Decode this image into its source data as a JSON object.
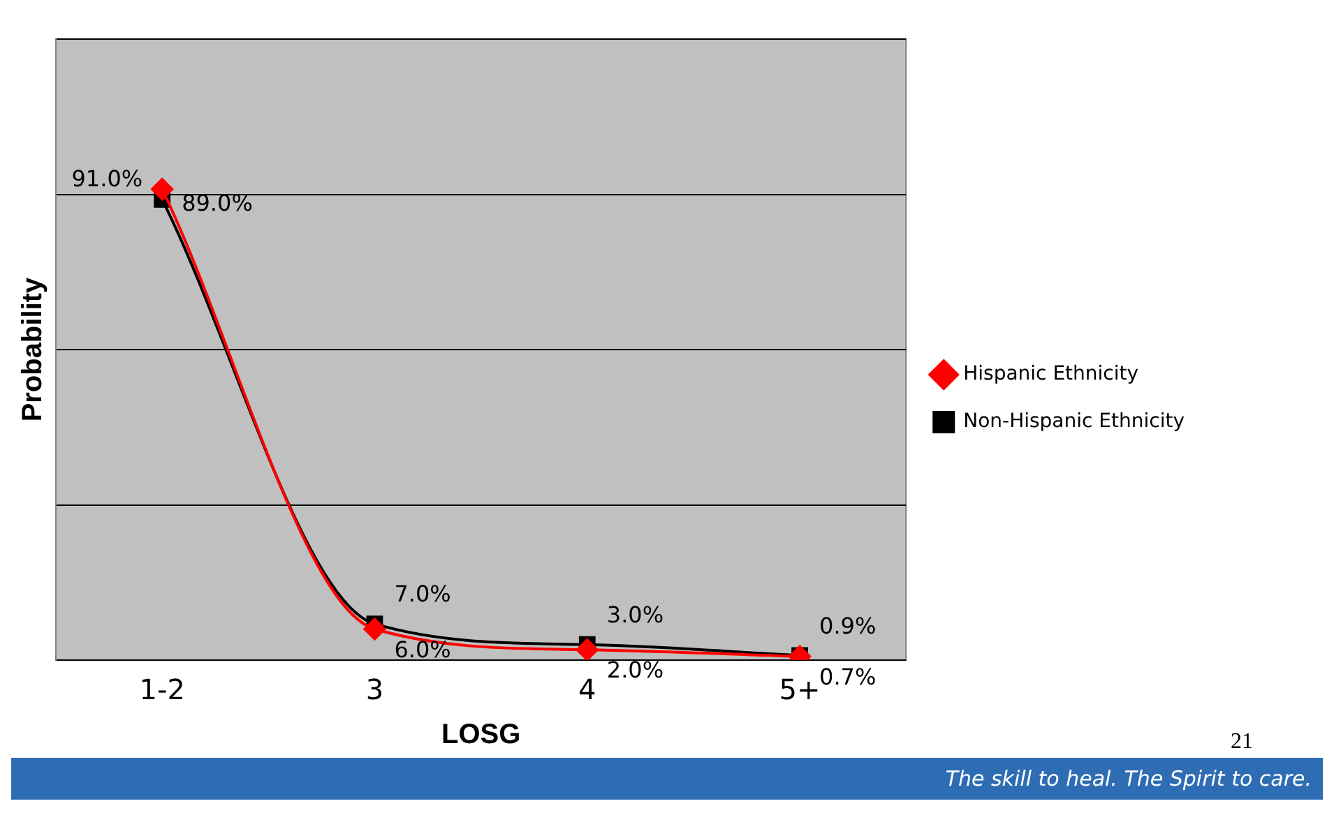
{
  "chart_data": {
    "type": "line",
    "xlabel": "LOSG",
    "ylabel": "Probability",
    "categories": [
      "1-2",
      "3",
      "4",
      "5+"
    ],
    "series": [
      {
        "name": "Hispanic Ethnicity",
        "color": "#ff0000",
        "marker": "diamond",
        "values": [
          91.0,
          6.0,
          2.0,
          0.7
        ],
        "value_labels": [
          "91.0%",
          "6.0%",
          "2.0%",
          "0.7%"
        ]
      },
      {
        "name": "Non-Hispanic Ethnicity",
        "color": "#000000",
        "marker": "square",
        "values": [
          89.0,
          7.0,
          3.0,
          0.9
        ],
        "value_labels": [
          "89.0%",
          "7.0%",
          "3.0%",
          "0.9%"
        ]
      }
    ],
    "ylim": [
      0,
      120
    ],
    "yticks": [
      {
        "value": 0,
        "label": null
      },
      {
        "value": 30,
        "label": null
      },
      {
        "value": 60,
        "label": null
      },
      {
        "value": 90,
        "label": null
      },
      {
        "value": 120,
        "label": null
      }
    ],
    "grid": "y",
    "tick_labels": "x",
    "legend": "right",
    "annotations": [
      "21",
      "The skill to heal.  The Spirit to care."
    ]
  }
}
